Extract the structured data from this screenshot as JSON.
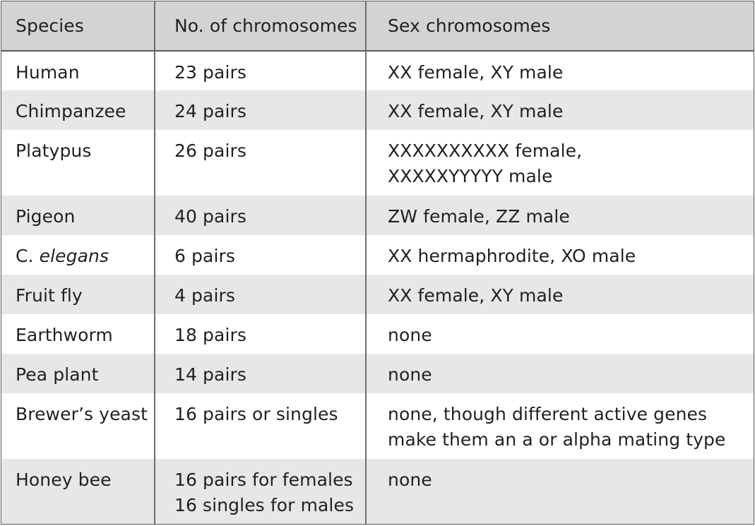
{
  "table": {
    "headers": [
      "Species",
      "No. of chromosomes",
      "Sex chromosomes"
    ],
    "rows": [
      {
        "species_prefix": "Human",
        "species_italic": "",
        "chromosomes": [
          "23 pairs"
        ],
        "sex": [
          "XX female, XY male"
        ]
      },
      {
        "species_prefix": "Chimpanzee",
        "species_italic": "",
        "chromosomes": [
          "24 pairs"
        ],
        "sex": [
          "XX female, XY male"
        ]
      },
      {
        "species_prefix": "Platypus",
        "species_italic": "",
        "chromosomes": [
          "26 pairs"
        ],
        "sex": [
          "XXXXXXXXXX female,",
          "XXXXXYYYYY male"
        ]
      },
      {
        "species_prefix": "Pigeon",
        "species_italic": "",
        "chromosomes": [
          "40 pairs"
        ],
        "sex": [
          "ZW female, ZZ male"
        ]
      },
      {
        "species_prefix": "C. ",
        "species_italic": "elegans",
        "chromosomes": [
          "6 pairs"
        ],
        "sex": [
          "XX hermaphrodite, XO male"
        ]
      },
      {
        "species_prefix": "Fruit fly",
        "species_italic": "",
        "chromosomes": [
          "4 pairs"
        ],
        "sex": [
          "XX female, XY male"
        ]
      },
      {
        "species_prefix": "Earthworm",
        "species_italic": "",
        "chromosomes": [
          "18 pairs"
        ],
        "sex": [
          "none"
        ]
      },
      {
        "species_prefix": "Pea plant",
        "species_italic": "",
        "chromosomes": [
          "14 pairs"
        ],
        "sex": [
          "none"
        ]
      },
      {
        "species_prefix": "Brewer’s yeast",
        "species_italic": "",
        "chromosomes": [
          "16 pairs or singles"
        ],
        "sex": [
          "none, though different active genes",
          "make them an a or alpha mating type"
        ]
      },
      {
        "species_prefix": "Honey bee",
        "species_italic": "",
        "chromosomes": [
          "16 pairs for females",
          "16 singles for males"
        ],
        "sex": [
          "none"
        ]
      }
    ]
  }
}
